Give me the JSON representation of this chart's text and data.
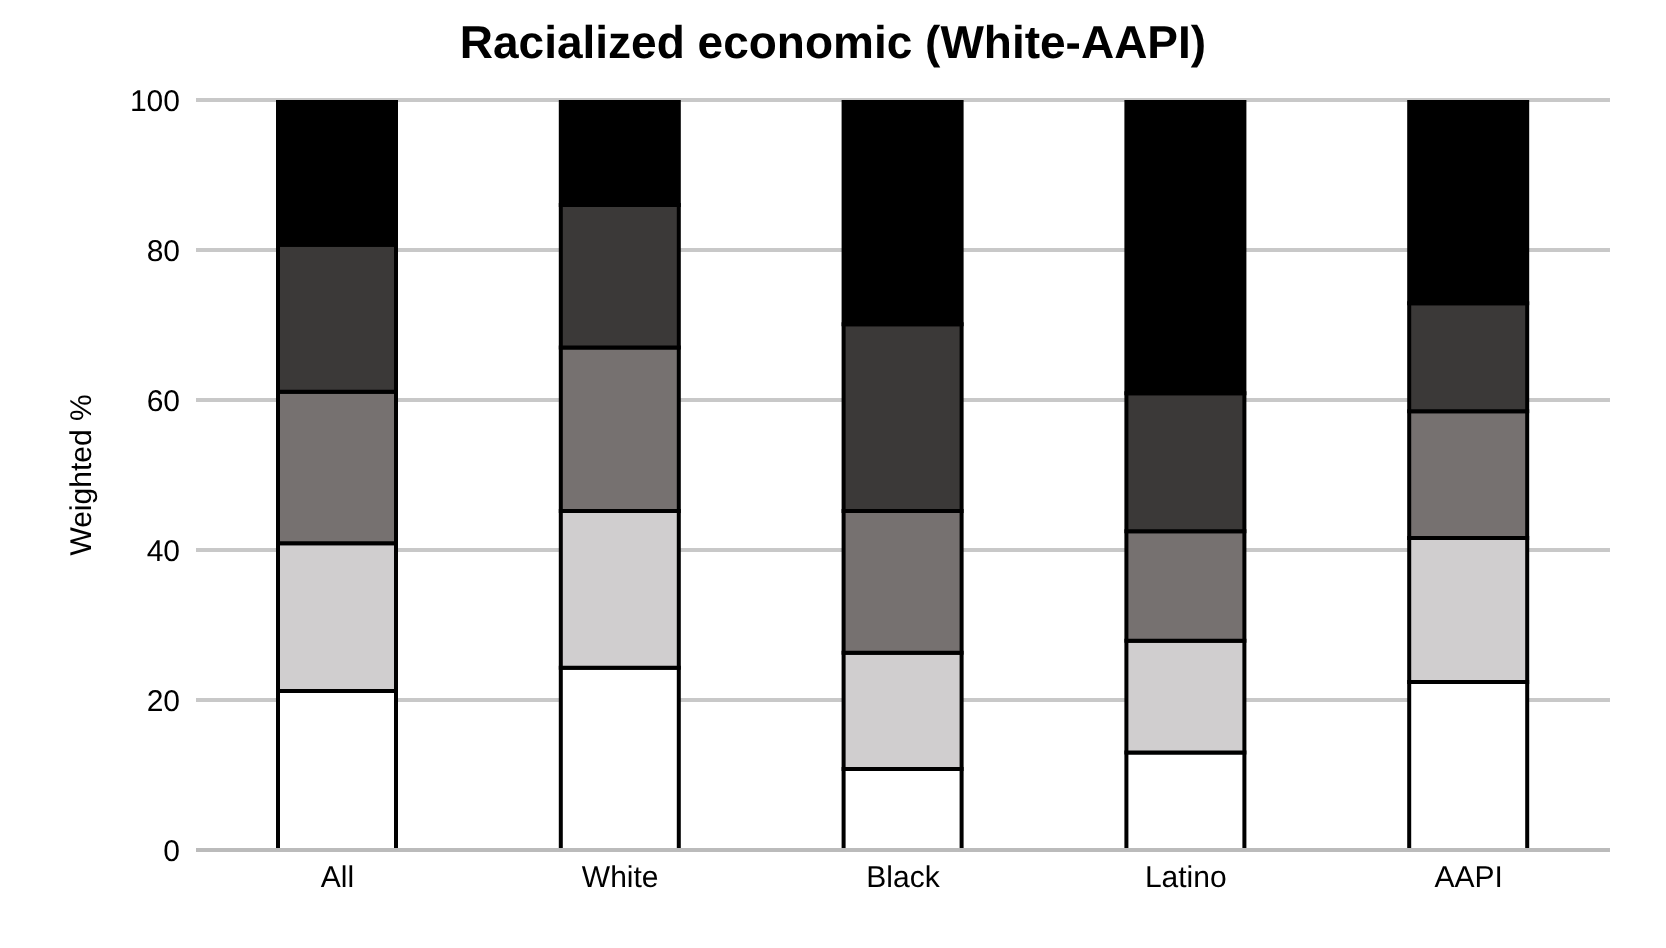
{
  "chart_data": {
    "type": "bar",
    "title": "Racialized economic (White-AAPI)",
    "ylabel": "Weighted %",
    "categories": [
      "All",
      "White",
      "Black",
      "Latino",
      "AAPI"
    ],
    "stacked": true,
    "series": [
      {
        "color": "#ffffff",
        "values": [
          21.2,
          24.3,
          10.8,
          13.0,
          22.4
        ]
      },
      {
        "color": "#d0cecf",
        "values": [
          19.7,
          20.9,
          15.5,
          14.9,
          19.2
        ]
      },
      {
        "color": "#767170",
        "values": [
          20.2,
          21.8,
          18.9,
          14.6,
          16.9
        ]
      },
      {
        "color": "#3b3938",
        "values": [
          19.6,
          19.0,
          24.9,
          18.4,
          14.4
        ]
      },
      {
        "color": "#000000",
        "values": [
          19.3,
          14.0,
          29.9,
          39.1,
          27.1
        ]
      }
    ],
    "ylim": [
      0,
      100
    ],
    "yticks": [
      0,
      20,
      40,
      60,
      80,
      100
    ],
    "grid": "y",
    "legend": false
  }
}
